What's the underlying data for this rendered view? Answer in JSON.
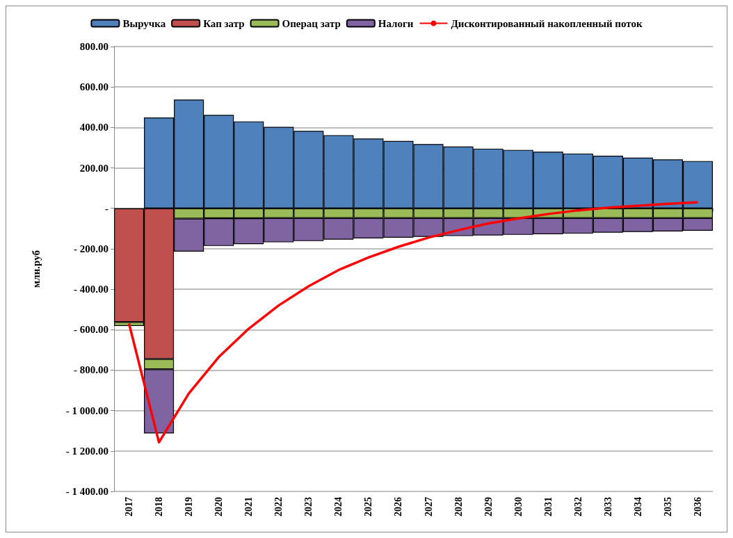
{
  "chart_data": {
    "type": "bar",
    "stacked": true,
    "ylabel": "млн.руб",
    "legend": "top",
    "grid": "y",
    "marker": "none",
    "categories": [
      "2017",
      "2018",
      "2019",
      "2020",
      "2021",
      "2022",
      "2023",
      "2024",
      "2025",
      "2026",
      "2027",
      "2028",
      "2029",
      "2030",
      "2031",
      "2032",
      "2033",
      "2034",
      "2035",
      "2036"
    ],
    "ylim": [
      -1400,
      800
    ],
    "yticks": [
      {
        "value": -1400,
        "label": "- 1 400.00"
      },
      {
        "value": -1200,
        "label": "- 1 200.00"
      },
      {
        "value": -1000,
        "label": "- 1 000.00"
      },
      {
        "value": -800,
        "label": "- 800.00"
      },
      {
        "value": -600,
        "label": "- 600.00"
      },
      {
        "value": -400,
        "label": "- 400.00"
      },
      {
        "value": -200,
        "label": "- 200.00"
      },
      {
        "value": 0,
        "label": "-"
      },
      {
        "value": 200,
        "label": "200.00"
      },
      {
        "value": 400,
        "label": "400.00"
      },
      {
        "value": 600,
        "label": "600.00"
      },
      {
        "value": 800,
        "label": "800.00"
      }
    ],
    "series": [
      {
        "name": "Выручка",
        "color": "#4f81bd",
        "values": [
          null,
          449,
          538,
          462,
          430,
          403,
          383,
          362,
          345,
          333,
          318,
          306,
          295,
          289,
          280,
          271,
          260,
          251,
          242,
          234
        ]
      },
      {
        "name": "Кап затр",
        "color": "#c0504d",
        "values": [
          -562,
          -745,
          null,
          null,
          null,
          null,
          null,
          null,
          null,
          null,
          null,
          null,
          null,
          null,
          null,
          null,
          null,
          null,
          null,
          null
        ]
      },
      {
        "name": "Операц затр",
        "color": "#9bbb59",
        "values": [
          -20,
          -51,
          -51,
          -49,
          -49,
          -48,
          -48,
          -48,
          -48,
          -48,
          -48,
          -48,
          -48,
          -48,
          -48,
          -48,
          -48,
          -48,
          -48,
          -48
        ]
      },
      {
        "name": "Налоги",
        "color": "#8064a2",
        "values": [
          null,
          -317,
          -163,
          -137,
          -128,
          -120,
          -114,
          -107,
          -101,
          -97,
          -93,
          -89,
          -86,
          -83,
          -80,
          -77,
          -72,
          -69,
          -66,
          -63
        ]
      },
      {
        "name": "Дисконтированный накопленный поток",
        "type": "line",
        "color": "#ff0000",
        "values": [
          -570,
          -1157,
          -915,
          -735,
          -595,
          -480,
          -385,
          -305,
          -243,
          -190,
          -145,
          -108,
          -75,
          -50,
          -28,
          -10,
          3,
          13,
          22,
          30
        ]
      }
    ]
  }
}
